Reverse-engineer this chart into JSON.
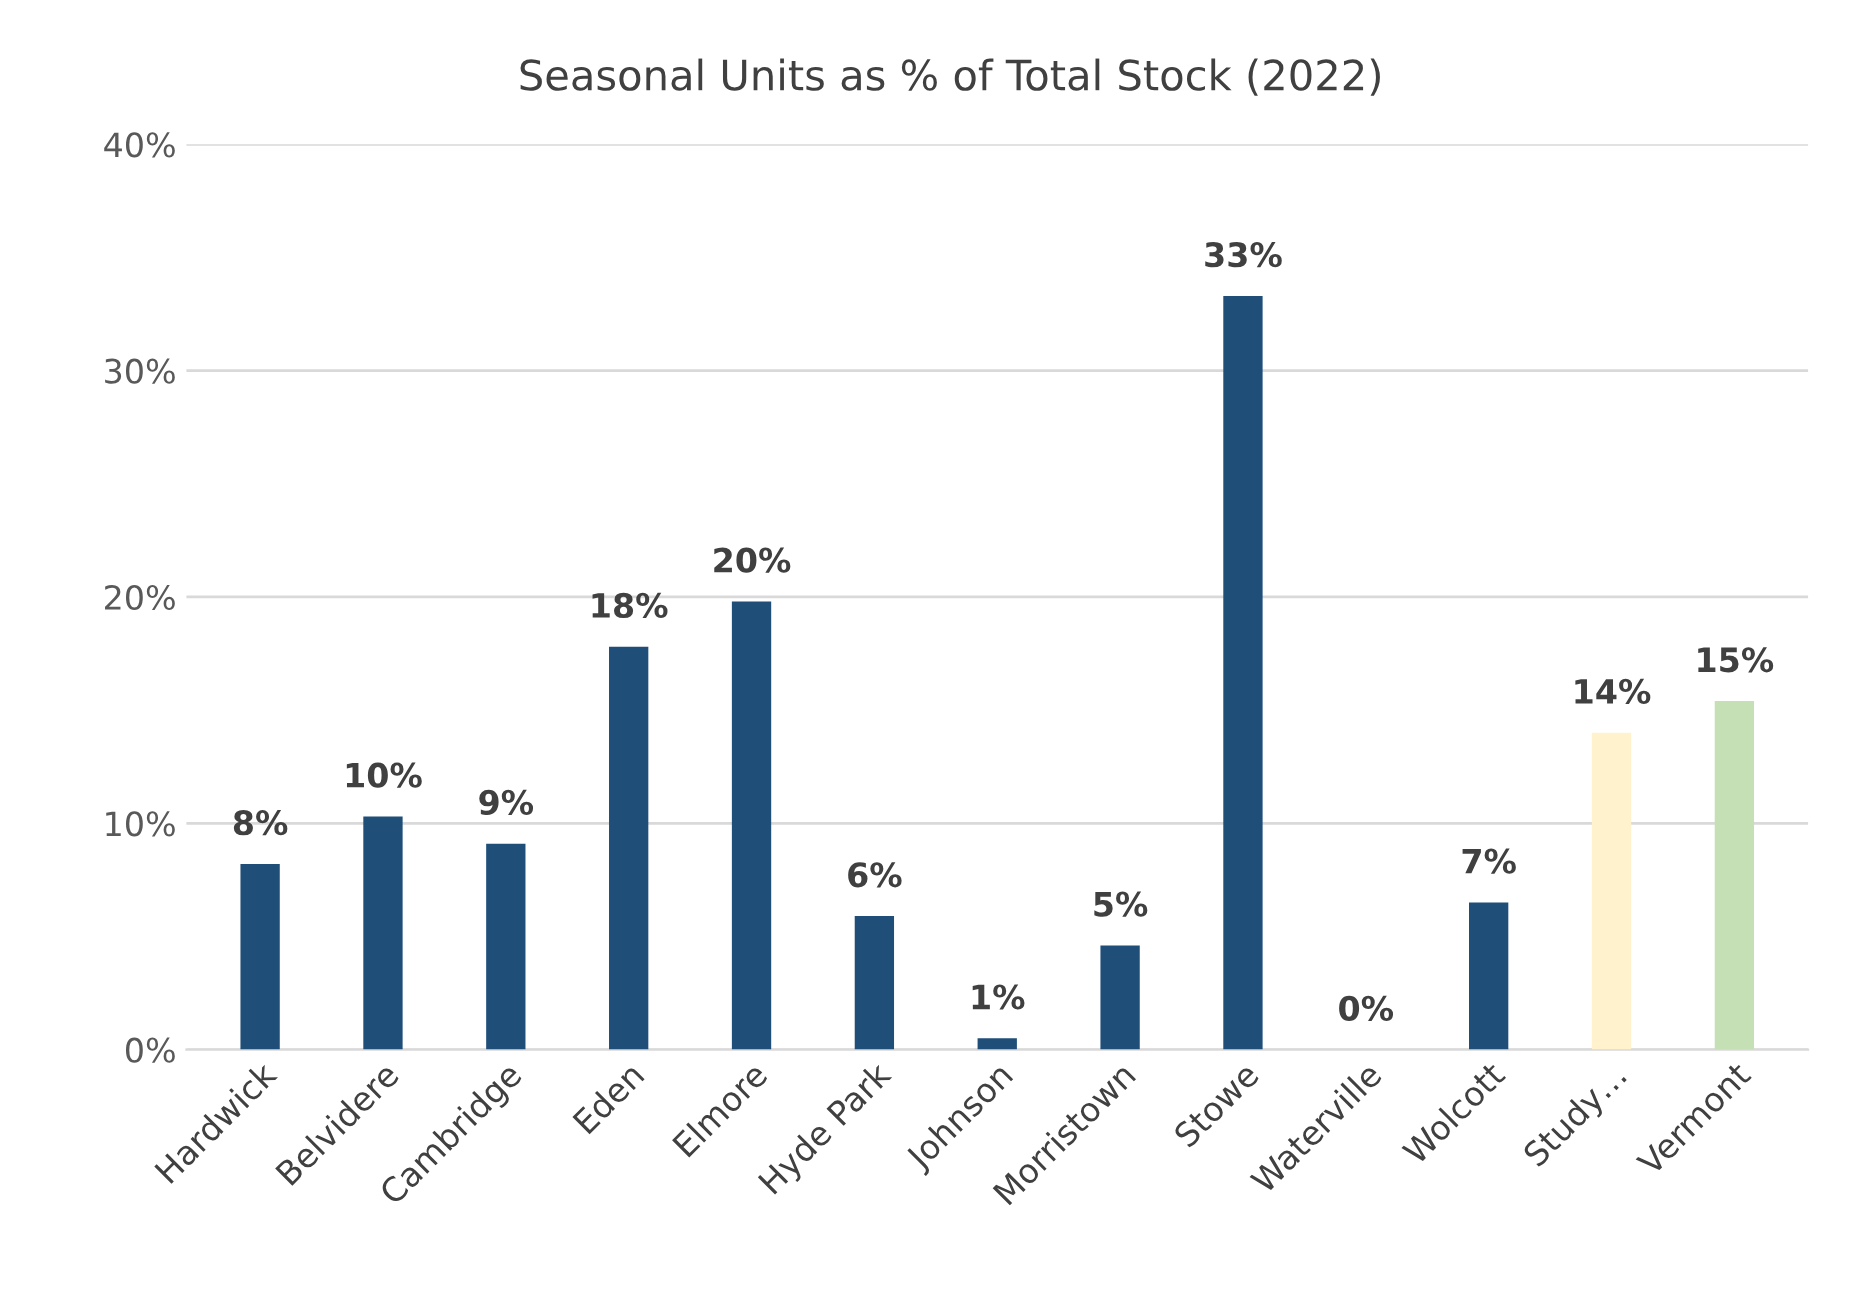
{
  "chart_data": {
    "type": "bar",
    "title": "Seasonal Units as % of Total Stock (2022)",
    "categories": [
      "Hardwick",
      "Belvidere",
      "Cambridge",
      "Eden",
      "Elmore",
      "Hyde Park",
      "Johnson",
      "Morristown",
      "Stowe",
      "Waterville",
      "Wolcott",
      "Study…",
      "Vermont"
    ],
    "values": [
      8.2,
      10.3,
      9.1,
      17.8,
      19.8,
      5.9,
      0.5,
      4.6,
      33.3,
      0,
      6.5,
      14.0,
      15.4
    ],
    "colors": [
      "#1f4e79",
      "#1f4e79",
      "#1f4e79",
      "#1f4e79",
      "#1f4e79",
      "#1f4e79",
      "#1f4e79",
      "#1f4e79",
      "#1f4e79",
      "#1f4e79",
      "#1f4e79",
      "#fff2cc",
      "#c5e0b4"
    ],
    "value_labels": [
      "8%",
      "10%",
      "9%",
      "18%",
      "20%",
      "6%",
      "1%",
      "5%",
      "33%",
      "0%",
      "7%",
      "14%",
      "15%"
    ],
    "ylim": [
      0,
      40
    ],
    "yticks": [
      {
        "value": 0,
        "label": "0%"
      },
      {
        "value": 10,
        "label": "10%"
      },
      {
        "value": 20,
        "label": "20%"
      },
      {
        "value": 30,
        "label": "30%"
      },
      {
        "value": 40,
        "label": "40%"
      }
    ],
    "grid": "y"
  }
}
